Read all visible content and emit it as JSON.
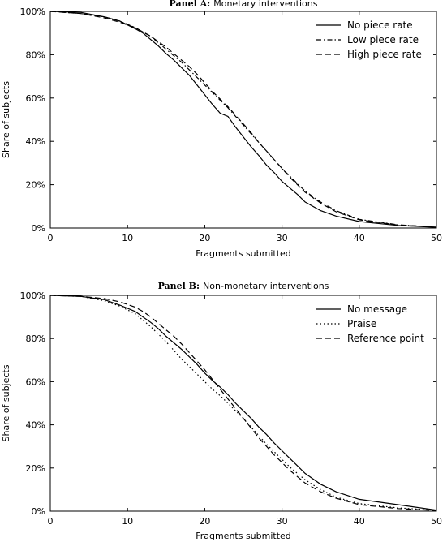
{
  "chart_data": [
    {
      "type": "line",
      "title_prefix": "Panel A:",
      "title": "Monetary interventions",
      "xlabel": "Fragments submitted",
      "ylabel": "Share of subjects",
      "xlim": [
        0,
        50
      ],
      "ylim": [
        0,
        1
      ],
      "xticks": [
        0,
        10,
        20,
        30,
        40,
        50
      ],
      "yticks": [
        0,
        0.2,
        0.4,
        0.6,
        0.8,
        1.0
      ],
      "ytick_labels": [
        "0%",
        "20%",
        "40%",
        "60%",
        "80%",
        "100%"
      ],
      "grid": false,
      "legend": "top-right",
      "series": [
        {
          "name": "No piece rate",
          "style": "solid",
          "x": [
            0,
            4,
            7,
            9,
            11,
            12,
            13,
            14,
            15,
            16,
            17,
            18,
            19,
            20,
            21,
            22,
            23,
            24,
            25,
            26,
            27,
            28,
            29,
            30,
            31,
            32,
            33,
            35,
            37,
            40,
            45,
            50
          ],
          "y": [
            1.0,
            0.995,
            0.975,
            0.955,
            0.92,
            0.9,
            0.87,
            0.84,
            0.805,
            0.775,
            0.74,
            0.705,
            0.66,
            0.615,
            0.57,
            0.53,
            0.515,
            0.465,
            0.42,
            0.375,
            0.335,
            0.29,
            0.255,
            0.215,
            0.185,
            0.155,
            0.12,
            0.08,
            0.055,
            0.03,
            0.012,
            0.003
          ]
        },
        {
          "name": "Low piece rate",
          "style": "dashdot",
          "x": [
            0,
            4,
            7,
            9,
            11,
            12,
            13,
            14,
            15,
            16,
            17,
            18,
            19,
            20,
            21,
            22,
            23,
            24,
            25,
            26,
            27,
            28,
            29,
            30,
            31,
            32,
            33,
            35,
            37,
            40,
            45,
            50
          ],
          "y": [
            1.0,
            0.99,
            0.975,
            0.955,
            0.925,
            0.905,
            0.885,
            0.855,
            0.825,
            0.795,
            0.765,
            0.73,
            0.695,
            0.66,
            0.625,
            0.59,
            0.555,
            0.515,
            0.475,
            0.435,
            0.395,
            0.355,
            0.315,
            0.275,
            0.24,
            0.205,
            0.17,
            0.12,
            0.08,
            0.04,
            0.015,
            0.004
          ]
        },
        {
          "name": "High piece rate",
          "style": "dashed",
          "x": [
            0,
            4,
            7,
            9,
            11,
            12,
            13,
            14,
            15,
            16,
            17,
            18,
            19,
            20,
            21,
            22,
            23,
            24,
            25,
            26,
            27,
            28,
            29,
            30,
            31,
            32,
            33,
            35,
            37,
            40,
            45,
            50
          ],
          "y": [
            1.0,
            0.99,
            0.97,
            0.95,
            0.925,
            0.905,
            0.885,
            0.86,
            0.835,
            0.805,
            0.775,
            0.745,
            0.71,
            0.67,
            0.63,
            0.595,
            0.56,
            0.52,
            0.48,
            0.44,
            0.395,
            0.355,
            0.315,
            0.275,
            0.235,
            0.2,
            0.165,
            0.115,
            0.075,
            0.038,
            0.014,
            0.004
          ]
        }
      ]
    },
    {
      "type": "line",
      "title_prefix": "Panel B:",
      "title": "Non-monetary interventions",
      "xlabel": "Fragments submitted",
      "ylabel": "Share of subjects",
      "xlim": [
        0,
        50
      ],
      "ylim": [
        0,
        1
      ],
      "xticks": [
        0,
        10,
        20,
        30,
        40,
        50
      ],
      "yticks": [
        0,
        0.2,
        0.4,
        0.6,
        0.8,
        1.0
      ],
      "ytick_labels": [
        "0%",
        "20%",
        "40%",
        "60%",
        "80%",
        "100%"
      ],
      "grid": false,
      "legend": "top-right",
      "series": [
        {
          "name": "No message",
          "style": "solid",
          "x": [
            0,
            4,
            7,
            9,
            11,
            12,
            13,
            14,
            15,
            16,
            17,
            18,
            19,
            20,
            21,
            22,
            23,
            24,
            25,
            26,
            27,
            28,
            29,
            30,
            31,
            32,
            33,
            35,
            37,
            40,
            45,
            50
          ],
          "y": [
            1.0,
            0.995,
            0.98,
            0.955,
            0.925,
            0.9,
            0.875,
            0.845,
            0.81,
            0.78,
            0.75,
            0.715,
            0.68,
            0.64,
            0.605,
            0.575,
            0.54,
            0.5,
            0.465,
            0.43,
            0.39,
            0.355,
            0.315,
            0.28,
            0.245,
            0.21,
            0.175,
            0.125,
            0.09,
            0.055,
            0.03,
            0.005
          ]
        },
        {
          "name": "Praise",
          "style": "dotted",
          "x": [
            0,
            4,
            7,
            9,
            11,
            12,
            13,
            14,
            15,
            16,
            17,
            18,
            19,
            20,
            21,
            22,
            23,
            24,
            25,
            26,
            27,
            28,
            29,
            30,
            31,
            32,
            33,
            35,
            37,
            40,
            45,
            50
          ],
          "y": [
            1.0,
            0.995,
            0.975,
            0.95,
            0.915,
            0.885,
            0.855,
            0.82,
            0.785,
            0.745,
            0.705,
            0.67,
            0.635,
            0.6,
            0.565,
            0.535,
            0.5,
            0.465,
            0.43,
            0.39,
            0.35,
            0.31,
            0.275,
            0.24,
            0.205,
            0.175,
            0.145,
            0.1,
            0.065,
            0.035,
            0.015,
            0.005
          ]
        },
        {
          "name": "Reference point",
          "style": "dashed",
          "x": [
            0,
            4,
            7,
            9,
            11,
            12,
            13,
            14,
            15,
            16,
            17,
            18,
            19,
            20,
            21,
            22,
            23,
            24,
            25,
            26,
            27,
            28,
            29,
            30,
            31,
            32,
            33,
            35,
            37,
            40,
            45,
            50
          ],
          "y": [
            1.0,
            0.995,
            0.985,
            0.97,
            0.945,
            0.925,
            0.9,
            0.87,
            0.84,
            0.81,
            0.775,
            0.735,
            0.695,
            0.655,
            0.61,
            0.565,
            0.52,
            0.475,
            0.43,
            0.385,
            0.34,
            0.3,
            0.26,
            0.225,
            0.19,
            0.16,
            0.13,
            0.09,
            0.06,
            0.03,
            0.012,
            0.003
          ]
        }
      ]
    }
  ]
}
